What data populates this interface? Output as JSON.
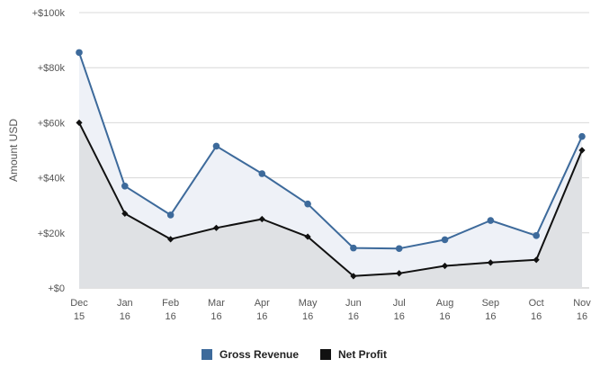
{
  "chart_data": {
    "type": "area",
    "ylabel": "Amount USD",
    "xlabel": "",
    "ylim": [
      0,
      100000
    ],
    "y_ticks": [
      {
        "value": 0,
        "label": "+$0"
      },
      {
        "value": 20000,
        "label": "+$20k"
      },
      {
        "value": 40000,
        "label": "+$40k"
      },
      {
        "value": 60000,
        "label": "+$60k"
      },
      {
        "value": 80000,
        "label": "+$80k"
      },
      {
        "value": 100000,
        "label": "+$100k"
      }
    ],
    "categories": [
      [
        "Dec",
        "15"
      ],
      [
        "Jan",
        "16"
      ],
      [
        "Feb",
        "16"
      ],
      [
        "Mar",
        "16"
      ],
      [
        "Apr",
        "16"
      ],
      [
        "May",
        "16"
      ],
      [
        "Jun",
        "16"
      ],
      [
        "Jul",
        "16"
      ],
      [
        "Aug",
        "16"
      ],
      [
        "Sep",
        "16"
      ],
      [
        "Oct",
        "16"
      ],
      [
        "Nov",
        "16"
      ]
    ],
    "grid": true,
    "legend_position": "bottom-center",
    "series": [
      {
        "name": "Gross Revenue",
        "color": "#3d6a9b",
        "fill": "#eef1f7",
        "marker": "circle",
        "values": [
          85500,
          37000,
          26500,
          51500,
          41500,
          30500,
          14500,
          14300,
          17500,
          24500,
          19000,
          55000
        ]
      },
      {
        "name": "Net Profit",
        "color": "#111111",
        "fill": "#dfe1e4",
        "marker": "diamond",
        "values": [
          60000,
          27000,
          17700,
          21800,
          25000,
          18600,
          4300,
          5300,
          8000,
          9200,
          10200,
          50000
        ]
      }
    ]
  }
}
